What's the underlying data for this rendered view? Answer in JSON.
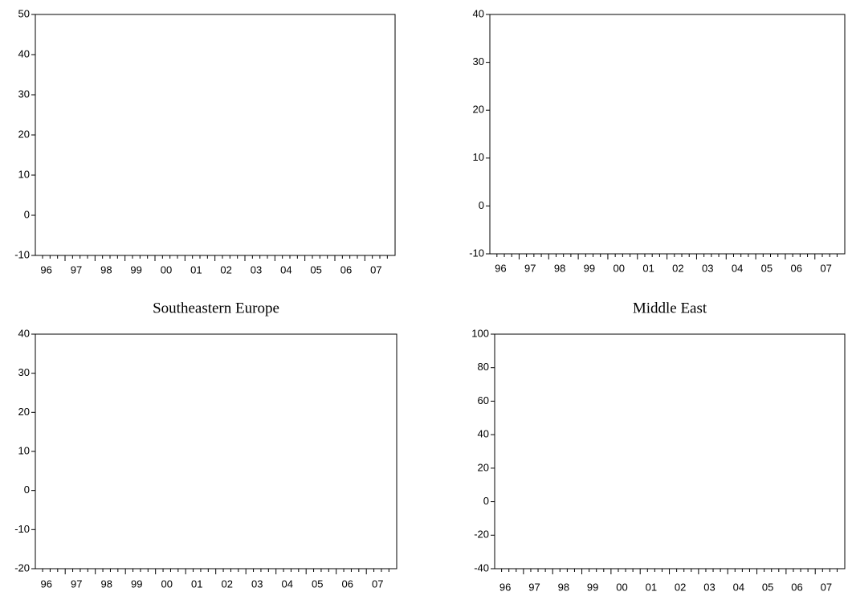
{
  "chart_data": [
    {
      "type": "line",
      "categories": [
        "96",
        "97",
        "98",
        "99",
        "00",
        "01",
        "02",
        "03",
        "04",
        "05",
        "06",
        "07"
      ],
      "ylim": [
        -10,
        50
      ],
      "yticks": [
        -10,
        0,
        10,
        20,
        30,
        40,
        50
      ]
    },
    {
      "type": "line",
      "categories": [
        "96",
        "97",
        "98",
        "99",
        "00",
        "01",
        "02",
        "03",
        "04",
        "05",
        "06",
        "07"
      ],
      "ylim": [
        -10,
        40
      ],
      "yticks": [
        -10,
        0,
        10,
        20,
        30,
        40
      ]
    },
    {
      "type": "line",
      "title": "Southeastern Europe",
      "categories": [
        "96",
        "97",
        "98",
        "99",
        "00",
        "01",
        "02",
        "03",
        "04",
        "05",
        "06",
        "07"
      ],
      "ylim": [
        -20,
        40
      ],
      "yticks": [
        -20,
        -10,
        0,
        10,
        20,
        30,
        40
      ]
    },
    {
      "type": "line",
      "title": "Middle East",
      "categories": [
        "96",
        "97",
        "98",
        "99",
        "00",
        "01",
        "02",
        "03",
        "04",
        "05",
        "06",
        "07"
      ],
      "ylim": [
        -40,
        100
      ],
      "yticks": [
        -40,
        -20,
        0,
        20,
        40,
        60,
        80,
        100
      ]
    }
  ]
}
